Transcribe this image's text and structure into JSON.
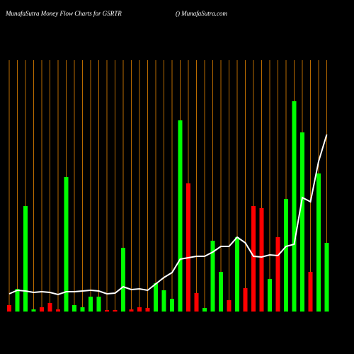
{
  "chart_data": {
    "type": "bar-line",
    "title": "MunafaSutra  Money Flow  Charts for GSRTR",
    "subtitle": "() MunafaSutra.com",
    "categories": [
      null,
      null,
      null,
      null,
      null,
      null,
      null,
      null,
      null,
      null,
      null,
      null,
      null,
      null,
      null,
      null,
      null,
      null,
      null,
      null,
      null,
      null,
      null,
      null,
      null,
      null,
      null,
      null,
      null,
      null,
      null,
      null,
      null,
      null,
      null,
      null,
      null,
      null,
      null,
      null
    ],
    "values": [
      9,
      32,
      149,
      3,
      6,
      12,
      3,
      190,
      9,
      6,
      21,
      21,
      2,
      2,
      90,
      3,
      6,
      5,
      40,
      30,
      18,
      270,
      181,
      26,
      5,
      100,
      56,
      16,
      105,
      33,
      149,
      146,
      46,
      105,
      159,
      297,
      253,
      56,
      195,
      97
    ],
    "bar_colors": [
      "#f00",
      "#0f0",
      "#0f0",
      "#0f0",
      "#f00",
      "#f00",
      "#f00",
      "#0f0",
      "#0f0",
      "#0f0",
      "#0f0",
      "#0f0",
      "#f00",
      "#f00",
      "#0f0",
      "#f00",
      "#f00",
      "#f00",
      "#0f0",
      "#0f0",
      "#0f0",
      "#0f0",
      "#f00",
      "#f00",
      "#0f0",
      "#0f0",
      "#0f0",
      "#f00",
      "#0f0",
      "#f00",
      "#f00",
      "#f00",
      "#0f0",
      "#f00",
      "#0f0",
      "#0f0",
      "#0f0",
      "#f00",
      "#0f0",
      "#0f0"
    ],
    "line_values": [
      25,
      30,
      29,
      27,
      28,
      27,
      24,
      28,
      28,
      29,
      30,
      29,
      25,
      26,
      35,
      31,
      32,
      30,
      39,
      48,
      55,
      74,
      76,
      78,
      78,
      84,
      92,
      92,
      105,
      97,
      78,
      77,
      80,
      79,
      92,
      95,
      161,
      155,
      212,
      250
    ],
    "line_color": "#ffffff",
    "ylim": [
      0,
      300
    ],
    "grid": true,
    "grid_color": "#b86a00"
  }
}
